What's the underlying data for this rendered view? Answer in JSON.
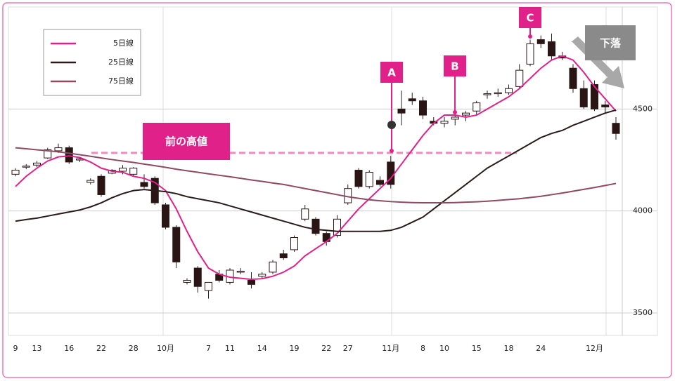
{
  "chart_data": {
    "type": "candlestick",
    "categories": [
      "9",
      null,
      "13",
      null,
      null,
      "16",
      null,
      null,
      "22",
      null,
      null,
      "28",
      null,
      null,
      "10月",
      null,
      null,
      null,
      "7",
      null,
      "11",
      null,
      null,
      "14",
      null,
      null,
      "19",
      null,
      null,
      "22",
      null,
      "27",
      null,
      null,
      null,
      "11月",
      null,
      null,
      "8",
      null,
      "10",
      null,
      null,
      "15",
      null,
      null,
      "18",
      null,
      null,
      "24",
      null,
      null,
      null,
      null,
      "12月",
      null,
      null
    ],
    "open": [
      4180,
      4215,
      4225,
      4260,
      4295,
      4310,
      4250,
      4140,
      4170,
      4185,
      4195,
      4180,
      4140,
      4160,
      4030,
      3920,
      3650,
      3720,
      3610,
      3690,
      3650,
      3700,
      3660,
      3680,
      3700,
      3790,
      3810,
      3960,
      3960,
      3890,
      3880,
      4040,
      4200,
      4120,
      4150,
      4240,
      4500,
      4550,
      4540,
      4440,
      4430,
      4450,
      4470,
      4490,
      4570,
      4575,
      4580,
      4610,
      4720,
      4840,
      4830,
      4760,
      4700,
      4600,
      4620,
      4520,
      4430
    ],
    "high": [
      4210,
      4230,
      4245,
      4310,
      4330,
      4320,
      4265,
      4160,
      4180,
      4205,
      4225,
      4215,
      4180,
      4170,
      4040,
      3930,
      3670,
      3730,
      3640,
      3710,
      3720,
      3720,
      3700,
      3700,
      3760,
      3810,
      3880,
      4030,
      3970,
      3900,
      3980,
      4130,
      4210,
      4200,
      4170,
      4270,
      4590,
      4580,
      4560,
      4460,
      4460,
      4490,
      4490,
      4540,
      4590,
      4600,
      4620,
      4720,
      4840,
      4860,
      4870,
      4780,
      4720,
      4640,
      4640,
      4540,
      4460
    ],
    "low": [
      4170,
      4205,
      4215,
      4255,
      4285,
      4230,
      4240,
      4130,
      4070,
      4180,
      4180,
      4170,
      4110,
      4030,
      3910,
      3720,
      3640,
      3600,
      3570,
      3650,
      3640,
      3690,
      3620,
      3670,
      3690,
      3760,
      3800,
      3950,
      3880,
      3830,
      3870,
      4030,
      4110,
      4110,
      4120,
      4110,
      4420,
      4520,
      4450,
      4420,
      4410,
      4420,
      4440,
      4470,
      4550,
      4560,
      4570,
      4600,
      4710,
      4800,
      4740,
      4740,
      4580,
      4500,
      4490,
      4480,
      4350
    ],
    "close": [
      4200,
      4220,
      4235,
      4300,
      4310,
      4240,
      4255,
      4150,
      4080,
      4200,
      4210,
      4210,
      4120,
      4040,
      3920,
      3750,
      3660,
      3630,
      3650,
      3660,
      3710,
      3705,
      3640,
      3690,
      3750,
      3770,
      3870,
      4010,
      3890,
      3850,
      3960,
      4110,
      4120,
      4190,
      4130,
      4130,
      4480,
      4540,
      4470,
      4430,
      4440,
      4460,
      4480,
      4530,
      4575,
      4580,
      4600,
      4690,
      4820,
      4820,
      4760,
      4750,
      4600,
      4510,
      4500,
      4510,
      4380
    ],
    "series": [
      {
        "name": "5日線",
        "color": "#e0218a",
        "values": [
          4120,
          4170,
          4210,
          4245,
          4265,
          4270,
          4262,
          4240,
          4210,
          4195,
          4190,
          4170,
          4160,
          4140,
          4100,
          4010,
          3900,
          3800,
          3720,
          3690,
          3675,
          3670,
          3665,
          3668,
          3680,
          3700,
          3730,
          3780,
          3815,
          3850,
          3890,
          3950,
          4010,
          4060,
          4110,
          4160,
          4230,
          4300,
          4370,
          4430,
          4470,
          4470,
          4460,
          4470,
          4500,
          4530,
          4560,
          4600,
          4650,
          4700,
          4740,
          4760,
          4740,
          4680,
          4610,
          4550,
          4490
        ]
      },
      {
        "name": "25日線",
        "color": "#2a1a1a",
        "values": [
          3950,
          3958,
          3965,
          3975,
          3985,
          3995,
          4005,
          4020,
          4040,
          4065,
          4085,
          4100,
          4105,
          4100,
          4095,
          4085,
          4070,
          4060,
          4050,
          4040,
          4025,
          4010,
          3995,
          3980,
          3965,
          3950,
          3935,
          3920,
          3910,
          3905,
          3900,
          3900,
          3900,
          3900,
          3900,
          3905,
          3920,
          3945,
          3970,
          4010,
          4050,
          4090,
          4130,
          4170,
          4210,
          4240,
          4270,
          4300,
          4330,
          4360,
          4380,
          4395,
          4420,
          4440,
          4460,
          4480,
          4495
        ]
      },
      {
        "name": "75日線",
        "color": "#8e4a63",
        "values": [
          4310,
          4305,
          4300,
          4295,
          4290,
          4283,
          4276,
          4268,
          4260,
          4252,
          4245,
          4238,
          4230,
          4222,
          4214,
          4205,
          4197,
          4190,
          4182,
          4175,
          4168,
          4160,
          4152,
          4145,
          4137,
          4130,
          4120,
          4110,
          4100,
          4090,
          4080,
          4070,
          4062,
          4055,
          4050,
          4046,
          4043,
          4041,
          4040,
          4040,
          4040,
          4041,
          4043,
          4045,
          4048,
          4052,
          4056,
          4060,
          4066,
          4072,
          4080,
          4088,
          4097,
          4106,
          4115,
          4125,
          4135
        ]
      }
    ],
    "ylim": [
      3390,
      5000
    ],
    "yticks": [
      3500,
      4000,
      4500
    ],
    "grid": true,
    "reference_line": {
      "label": "前の高値",
      "value": 4285
    },
    "annotations": [
      "A",
      "B",
      "C",
      "下落"
    ]
  }
}
